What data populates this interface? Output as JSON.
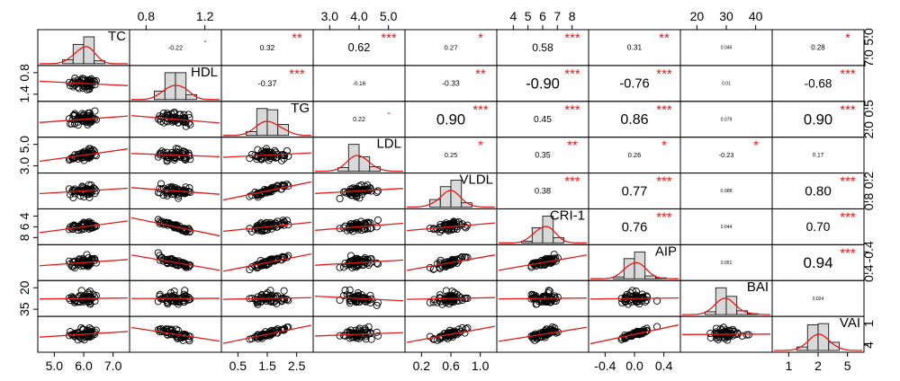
{
  "chart_data": {
    "type": "scatter",
    "variables": [
      "TC",
      "HDL",
      "TG",
      "LDL",
      "VLDL",
      "CRI-1",
      "AIP",
      "BAI",
      "VAI"
    ],
    "variable_ranges": {
      "TC": [
        4.6,
        7.7
      ],
      "HDL": [
        0.55,
        1.55
      ],
      "TG": [
        0.4,
        2.7
      ],
      "LDL": [
        1.6,
        5.4
      ],
      "VLDL": [
        0.18,
        1.22
      ],
      "CRI-1": [
        3.0,
        8.2
      ],
      "AIP": [
        -0.62,
        0.55
      ],
      "BAI": [
        14,
        47
      ],
      "VAI": [
        -0.3,
        6.4
      ]
    },
    "correlations": [
      {
        "pair": [
          "TC",
          "HDL"
        ],
        "r": "-0.22",
        "stars": "."
      },
      {
        "pair": [
          "TC",
          "TG"
        ],
        "r": "0.32",
        "stars": "**"
      },
      {
        "pair": [
          "TC",
          "LDL"
        ],
        "r": "0.62",
        "stars": "***"
      },
      {
        "pair": [
          "TC",
          "VLDL"
        ],
        "r": "0.27",
        "stars": "*"
      },
      {
        "pair": [
          "TC",
          "CRI-1"
        ],
        "r": "0.58",
        "stars": "***"
      },
      {
        "pair": [
          "TC",
          "AIP"
        ],
        "r": "0.31",
        "stars": "**"
      },
      {
        "pair": [
          "TC",
          "BAI"
        ],
        "r": "0.046",
        "stars": ""
      },
      {
        "pair": [
          "TC",
          "VAI"
        ],
        "r": "0.28",
        "stars": "*"
      },
      {
        "pair": [
          "HDL",
          "TG"
        ],
        "r": "-0.37",
        "stars": "***"
      },
      {
        "pair": [
          "HDL",
          "LDL"
        ],
        "r": "-0.16",
        "stars": ""
      },
      {
        "pair": [
          "HDL",
          "VLDL"
        ],
        "r": "-0.33",
        "stars": "**"
      },
      {
        "pair": [
          "HDL",
          "CRI-1"
        ],
        "r": "-0.90",
        "stars": "***"
      },
      {
        "pair": [
          "HDL",
          "AIP"
        ],
        "r": "-0.76",
        "stars": "***"
      },
      {
        "pair": [
          "HDL",
          "BAI"
        ],
        "r": "0.01",
        "stars": ""
      },
      {
        "pair": [
          "HDL",
          "VAI"
        ],
        "r": "-0.68",
        "stars": "***"
      },
      {
        "pair": [
          "TG",
          "LDL"
        ],
        "r": "0.22",
        "stars": "."
      },
      {
        "pair": [
          "TG",
          "VLDL"
        ],
        "r": "0.90",
        "stars": "***"
      },
      {
        "pair": [
          "TG",
          "CRI-1"
        ],
        "r": "0.45",
        "stars": "***"
      },
      {
        "pair": [
          "TG",
          "AIP"
        ],
        "r": "0.86",
        "stars": "***"
      },
      {
        "pair": [
          "TG",
          "BAI"
        ],
        "r": "0.079",
        "stars": ""
      },
      {
        "pair": [
          "TG",
          "VAI"
        ],
        "r": "0.90",
        "stars": "***"
      },
      {
        "pair": [
          "LDL",
          "VLDL"
        ],
        "r": "0.25",
        "stars": "*"
      },
      {
        "pair": [
          "LDL",
          "CRI-1"
        ],
        "r": "0.35",
        "stars": "**"
      },
      {
        "pair": [
          "LDL",
          "AIP"
        ],
        "r": "0.26",
        "stars": "*"
      },
      {
        "pair": [
          "LDL",
          "BAI"
        ],
        "r": "-0.23",
        "stars": "*"
      },
      {
        "pair": [
          "LDL",
          "VAI"
        ],
        "r": "0.17",
        "stars": ""
      },
      {
        "pair": [
          "VLDL",
          "CRI-1"
        ],
        "r": "0.38",
        "stars": "***"
      },
      {
        "pair": [
          "VLDL",
          "AIP"
        ],
        "r": "0.77",
        "stars": "***"
      },
      {
        "pair": [
          "VLDL",
          "BAI"
        ],
        "r": "0.088",
        "stars": ""
      },
      {
        "pair": [
          "VLDL",
          "VAI"
        ],
        "r": "0.80",
        "stars": "***"
      },
      {
        "pair": [
          "CRI-1",
          "AIP"
        ],
        "r": "0.76",
        "stars": "***"
      },
      {
        "pair": [
          "CRI-1",
          "BAI"
        ],
        "r": "0.044",
        "stars": ""
      },
      {
        "pair": [
          "CRI-1",
          "VAI"
        ],
        "r": "0.70",
        "stars": "***"
      },
      {
        "pair": [
          "AIP",
          "BAI"
        ],
        "r": "0.051",
        "stars": ""
      },
      {
        "pair": [
          "AIP",
          "VAI"
        ],
        "r": "0.94",
        "stars": "***"
      },
      {
        "pair": [
          "BAI",
          "VAI"
        ],
        "r": "0.024",
        "stars": ""
      }
    ],
    "axes": {
      "top": [
        {
          "variable": "HDL",
          "ticks": [
            "0.8",
            "1.2"
          ]
        },
        {
          "variable": "LDL",
          "ticks": [
            "3.0",
            "4.0",
            "5.0"
          ]
        },
        {
          "variable": "CRI-1",
          "ticks": [
            "4",
            "5",
            "6",
            "7",
            "8"
          ]
        },
        {
          "variable": "BAI",
          "ticks": [
            "20",
            "30",
            "40"
          ]
        }
      ],
      "bottom": [
        {
          "variable": "TC",
          "ticks": [
            "5.0",
            "6.0",
            "7.0"
          ]
        },
        {
          "variable": "TG",
          "ticks": [
            "0.5",
            "1.5",
            "2.5"
          ]
        },
        {
          "variable": "VLDL",
          "ticks": [
            "0.2",
            "0.6",
            "1.0"
          ]
        },
        {
          "variable": "AIP",
          "ticks": [
            "-0.4",
            "0.0",
            "0.4"
          ]
        },
        {
          "variable": "VAI",
          "ticks": [
            "1",
            "2",
            "5"
          ]
        }
      ],
      "left": [
        {
          "variable": "HDL",
          "ticks": [
            "0.8",
            "1.4"
          ]
        },
        {
          "variable": "LDL",
          "ticks": [
            "5.0",
            "3.0"
          ]
        },
        {
          "variable": "CRI-1",
          "ticks": [
            "4",
            "6",
            "8"
          ]
        },
        {
          "variable": "BAI",
          "ticks": [
            "20",
            "35"
          ]
        }
      ],
      "right": [
        {
          "variable": "TC",
          "ticks": [
            "5.0",
            "7.0"
          ]
        },
        {
          "variable": "TG",
          "ticks": [
            "0.5",
            "2.0"
          ]
        },
        {
          "variable": "VLDL",
          "ticks": [
            "0.2",
            "0.8"
          ]
        },
        {
          "variable": "AIP",
          "ticks": [
            "-0.4",
            "0.4"
          ]
        },
        {
          "variable": "VAI",
          "ticks": [
            "1",
            "4"
          ]
        }
      ]
    },
    "colors": {
      "text": "#000000",
      "smoother": "#e41a1a",
      "stars": "#e41a1a",
      "bars": "#d9d9d9"
    },
    "histogram": true,
    "smoother": "loess",
    "legend": "none",
    "grid": false
  }
}
